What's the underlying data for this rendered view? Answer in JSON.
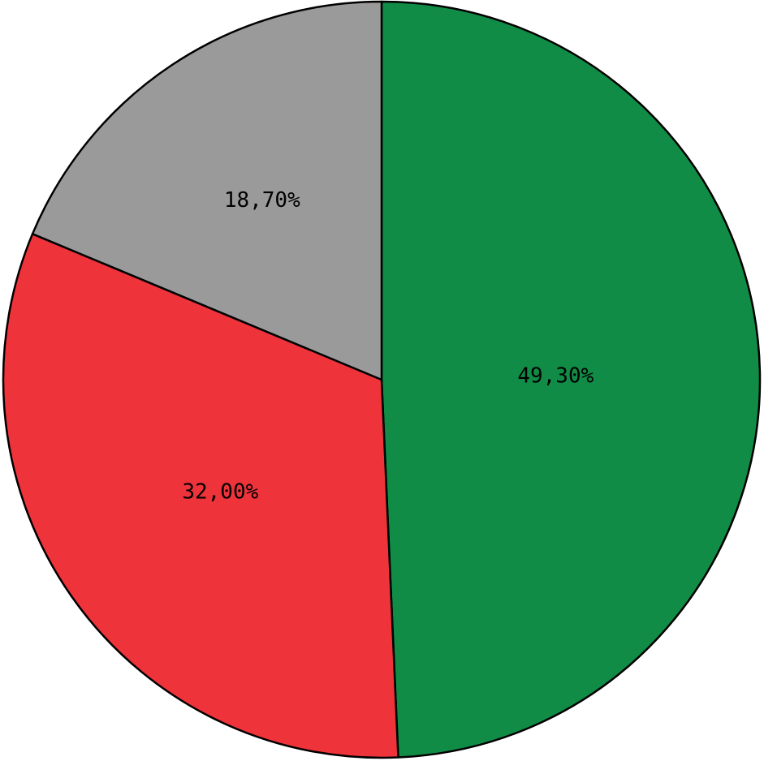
{
  "chart_data": {
    "type": "pie",
    "start_angle_deg": 0,
    "direction": "clockwise",
    "legend": "none",
    "slices": [
      {
        "value": 49.3,
        "label": "49,30%",
        "color": "#118c46"
      },
      {
        "value": 32.0,
        "label": "32,00%",
        "color": "#ef333a"
      },
      {
        "value": 18.7,
        "label": "18,70%",
        "color": "#9a9a9a"
      }
    ]
  }
}
